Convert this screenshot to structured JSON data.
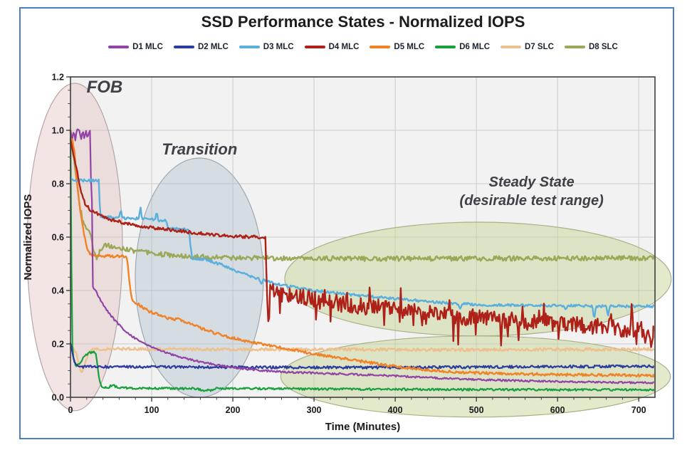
{
  "title": "SSD Performance States - Normalized IOPS",
  "colors": {
    "frame": "#4d7ebf",
    "plot_bg": "#f2f2f2",
    "grid": "#c9cccc",
    "axis_box": "#3f3f3f",
    "tick_text": "#1a1a1a",
    "annotation_text": "#3f4048",
    "title_text": "#1c1c1c"
  },
  "chart_data": {
    "type": "line",
    "title": "SSD Performance States - Normalized IOPS",
    "xlabel": "Time (Minutes)",
    "ylabel": "Normalized IOPS",
    "xlim": [
      0,
      720
    ],
    "ylim": [
      0,
      1.2
    ],
    "x_ticks": [
      0,
      100,
      200,
      300,
      400,
      500,
      600,
      700
    ],
    "y_ticks": [
      "0.0",
      "0.2",
      "0.4",
      "0.6",
      "0.8",
      "1.0",
      "1.2"
    ],
    "grid": true,
    "legend_position": "top",
    "draw_order": [
      "D7 SLC",
      "D8 SLC",
      "D6 MLC",
      "D2 MLC",
      "D5 MLC",
      "D1 MLC",
      "D3 MLC",
      "D4 MLC"
    ],
    "annotations": [
      {
        "label": "FOB",
        "label_t": 42,
        "label_v": 1.141,
        "font": 24,
        "ellipse": {
          "t": 5.3,
          "v": 0.563,
          "rt": 58.8,
          "rv": 0.613
        },
        "fill": "rgba(224,186,183,0.38)",
        "stroke": "#b3a6a4"
      },
      {
        "label": "Transition",
        "label_t": 159,
        "label_v": 0.909,
        "font": 22,
        "ellipse": {
          "t": 158.7,
          "v": 0.448,
          "rt": 78.9,
          "rv": 0.448
        },
        "fill": "rgba(174,191,204,0.42)",
        "stroke": "#9fa9b0"
      },
      {
        "label": "Steady State",
        "label2": "(desirable test range)",
        "label_t": 568,
        "label_v": 0.789,
        "label_v2": 0.72,
        "font": 20,
        "ellipse": {
          "t": 502,
          "v": 0.443,
          "rt": 238,
          "rv": 0.213
        },
        "fill": "rgba(199,211,151,0.5)",
        "stroke": "#a9b187"
      },
      {
        "label": "",
        "ellipse": {
          "t": 499,
          "v": 0.078,
          "rt": 240,
          "rv": 0.152
        },
        "fill": "rgba(199,211,151,0.5)",
        "stroke": "#a9b187"
      }
    ],
    "series": [
      {
        "name": "D1 MLC",
        "color": "#9144a6",
        "width": 2.2,
        "seed": 1,
        "noise": [
          [
            0,
            0.006
          ],
          [
            30,
            0.0035
          ]
        ],
        "points": [
          [
            0,
            1.0
          ],
          [
            2,
            0.965
          ],
          [
            4,
            1.0
          ],
          [
            6,
            0.965
          ],
          [
            8,
            1.0
          ],
          [
            11,
            1.0
          ],
          [
            13,
            0.965
          ],
          [
            15,
            1.0
          ],
          [
            17,
            0.968
          ],
          [
            19,
            1.0
          ],
          [
            21,
            0.968
          ],
          [
            23,
            1.0
          ],
          [
            24.5,
            1.0
          ],
          [
            25.5,
            0.74
          ],
          [
            26.5,
            0.74
          ],
          [
            27.5,
            0.42
          ],
          [
            30,
            0.405
          ],
          [
            38,
            0.36
          ],
          [
            45,
            0.325
          ],
          [
            55,
            0.287
          ],
          [
            65,
            0.256
          ],
          [
            75,
            0.231
          ],
          [
            85,
            0.211
          ],
          [
            95,
            0.196
          ],
          [
            110,
            0.177
          ],
          [
            125,
            0.16
          ],
          [
            140,
            0.147
          ],
          [
            155,
            0.136
          ],
          [
            170,
            0.127
          ],
          [
            190,
            0.117
          ],
          [
            210,
            0.108
          ],
          [
            230,
            0.102
          ],
          [
            250,
            0.0975
          ],
          [
            270,
            0.094
          ],
          [
            300,
            0.091
          ],
          [
            330,
            0.088
          ],
          [
            360,
            0.0845
          ],
          [
            400,
            0.08
          ],
          [
            440,
            0.074
          ],
          [
            480,
            0.068
          ],
          [
            530,
            0.064
          ],
          [
            580,
            0.06
          ],
          [
            640,
            0.057
          ],
          [
            718,
            0.054
          ]
        ]
      },
      {
        "name": "D2 MLC",
        "color": "#2b3c9e",
        "width": 2.2,
        "seed": 2,
        "noise": [
          [
            0,
            0.005
          ]
        ],
        "points": [
          [
            0,
            0.2
          ],
          [
            2,
            0.17
          ],
          [
            4,
            0.14
          ],
          [
            7,
            0.122
          ],
          [
            10,
            0.115
          ],
          [
            60,
            0.114
          ],
          [
            200,
            0.113
          ],
          [
            300,
            0.112
          ],
          [
            400,
            0.112
          ],
          [
            500,
            0.113
          ],
          [
            600,
            0.115
          ],
          [
            718,
            0.116
          ]
        ]
      },
      {
        "name": "D3 MLC",
        "color": "#5aafdc",
        "width": 2.4,
        "seed": 3,
        "noise": [
          [
            0,
            0.005
          ]
        ],
        "spikes": [
          [
            235,
            -0.02
          ],
          [
            480,
            -0.018
          ],
          [
            610,
            -0.02
          ],
          [
            645,
            -0.05
          ],
          [
            662,
            -0.038
          ]
        ],
        "points": [
          [
            0,
            0.82
          ],
          [
            3,
            0.812
          ],
          [
            35,
            0.812
          ],
          [
            36.5,
            0.68
          ],
          [
            38,
            0.675
          ],
          [
            60,
            0.672
          ],
          [
            62,
            0.702
          ],
          [
            64,
            0.671
          ],
          [
            84,
            0.669
          ],
          [
            86,
            0.716
          ],
          [
            88,
            0.668
          ],
          [
            104,
            0.666
          ],
          [
            106,
            0.698
          ],
          [
            108,
            0.664
          ],
          [
            118,
            0.661
          ],
          [
            120,
            0.633
          ],
          [
            146,
            0.629
          ],
          [
            148,
            0.56
          ],
          [
            150,
            0.522
          ],
          [
            166,
            0.516
          ],
          [
            180,
            0.503
          ],
          [
            200,
            0.478
          ],
          [
            220,
            0.455
          ],
          [
            240,
            0.436
          ],
          [
            260,
            0.42
          ],
          [
            280,
            0.41
          ],
          [
            300,
            0.4
          ],
          [
            330,
            0.39
          ],
          [
            360,
            0.38
          ],
          [
            390,
            0.372
          ],
          [
            420,
            0.364
          ],
          [
            450,
            0.356
          ],
          [
            480,
            0.35
          ],
          [
            520,
            0.346
          ],
          [
            560,
            0.344
          ],
          [
            600,
            0.343
          ],
          [
            650,
            0.342
          ],
          [
            718,
            0.341
          ]
        ]
      },
      {
        "name": "D4 MLC",
        "color": "#ae2118",
        "width": 2.4,
        "seed": 4,
        "noise": [
          [
            0,
            0.006
          ],
          [
            246,
            0.032
          ]
        ],
        "spiky_from": 250,
        "points": [
          [
            0,
            0.96
          ],
          [
            6,
            0.88
          ],
          [
            12,
            0.78
          ],
          [
            18,
            0.725
          ],
          [
            25,
            0.7
          ],
          [
            35,
            0.685
          ],
          [
            50,
            0.665
          ],
          [
            70,
            0.65
          ],
          [
            90,
            0.64
          ],
          [
            110,
            0.632
          ],
          [
            130,
            0.625
          ],
          [
            150,
            0.617
          ],
          [
            170,
            0.61
          ],
          [
            190,
            0.605
          ],
          [
            210,
            0.602
          ],
          [
            230,
            0.6
          ],
          [
            240,
            0.598
          ],
          [
            241.5,
            0.45
          ],
          [
            243,
            0.3
          ],
          [
            244.5,
            0.27
          ],
          [
            246,
            0.4
          ],
          [
            250,
            0.392
          ],
          [
            280,
            0.375
          ],
          [
            310,
            0.36
          ],
          [
            340,
            0.348
          ],
          [
            370,
            0.338
          ],
          [
            400,
            0.328
          ],
          [
            430,
            0.318
          ],
          [
            460,
            0.308
          ],
          [
            490,
            0.3
          ],
          [
            520,
            0.292
          ],
          [
            550,
            0.285
          ],
          [
            580,
            0.278
          ],
          [
            610,
            0.272
          ],
          [
            640,
            0.266
          ],
          [
            670,
            0.26
          ],
          [
            700,
            0.252
          ],
          [
            718,
            0.247
          ]
        ]
      },
      {
        "name": "D5 MLC",
        "color": "#f08228",
        "width": 2.4,
        "seed": 5,
        "noise": [
          [
            0,
            0.005
          ]
        ],
        "points": [
          [
            0,
            1.0
          ],
          [
            5,
            0.92
          ],
          [
            8,
            0.8
          ],
          [
            12,
            0.7
          ],
          [
            16,
            0.62
          ],
          [
            20,
            0.565
          ],
          [
            24,
            0.535
          ],
          [
            28,
            0.53
          ],
          [
            66,
            0.528
          ],
          [
            70,
            0.52
          ],
          [
            72,
            0.45
          ],
          [
            75,
            0.38
          ],
          [
            78,
            0.355
          ],
          [
            85,
            0.345
          ],
          [
            95,
            0.325
          ],
          [
            105,
            0.312
          ],
          [
            115,
            0.302
          ],
          [
            125,
            0.292
          ],
          [
            132,
            0.294
          ],
          [
            140,
            0.285
          ],
          [
            150,
            0.272
          ],
          [
            160,
            0.26
          ],
          [
            170,
            0.249
          ],
          [
            180,
            0.239
          ],
          [
            190,
            0.23
          ],
          [
            200,
            0.222
          ],
          [
            212,
            0.213
          ],
          [
            225,
            0.205
          ],
          [
            240,
            0.196
          ],
          [
            255,
            0.188
          ],
          [
            270,
            0.18
          ],
          [
            285,
            0.172
          ],
          [
            300,
            0.163
          ],
          [
            315,
            0.155
          ],
          [
            330,
            0.148
          ],
          [
            345,
            0.141
          ],
          [
            360,
            0.134
          ],
          [
            375,
            0.127
          ],
          [
            390,
            0.12
          ],
          [
            405,
            0.114
          ],
          [
            420,
            0.108
          ],
          [
            435,
            0.104
          ],
          [
            450,
            0.1
          ],
          [
            465,
            0.097
          ],
          [
            485,
            0.093
          ],
          [
            510,
            0.09
          ],
          [
            560,
            0.087
          ],
          [
            620,
            0.084
          ],
          [
            718,
            0.082
          ]
        ]
      },
      {
        "name": "D6 MLC",
        "color": "#18a03c",
        "width": 2.2,
        "seed": 6,
        "noise": [
          [
            0,
            0.004
          ]
        ],
        "points": [
          [
            0,
            1.0
          ],
          [
            1,
            0.55
          ],
          [
            2,
            0.22
          ],
          [
            3,
            0.155
          ],
          [
            5,
            0.132
          ],
          [
            7,
            0.118
          ],
          [
            10,
            0.124
          ],
          [
            14,
            0.14
          ],
          [
            18,
            0.155
          ],
          [
            22,
            0.164
          ],
          [
            27,
            0.17
          ],
          [
            31,
            0.17
          ],
          [
            33,
            0.125
          ],
          [
            35,
            0.075
          ],
          [
            37,
            0.048
          ],
          [
            40,
            0.038
          ],
          [
            46,
            0.037
          ],
          [
            52,
            0.046
          ],
          [
            56,
            0.04
          ],
          [
            62,
            0.036
          ],
          [
            80,
            0.034
          ],
          [
            120,
            0.033
          ],
          [
            155,
            0.033
          ],
          [
            162,
            0.027
          ],
          [
            172,
            0.026
          ],
          [
            178,
            0.033
          ],
          [
            230,
            0.033
          ],
          [
            300,
            0.031
          ],
          [
            400,
            0.03
          ],
          [
            500,
            0.029
          ],
          [
            600,
            0.028
          ],
          [
            718,
            0.028
          ]
        ]
      },
      {
        "name": "D7 SLC",
        "color": "#edc18d",
        "width": 2.4,
        "seed": 7,
        "noise": [
          [
            0,
            0.0055
          ]
        ],
        "points": [
          [
            0,
            0.19
          ],
          [
            4,
            0.186
          ],
          [
            8,
            0.158
          ],
          [
            11,
            0.118
          ],
          [
            13,
            0.094
          ],
          [
            15,
            0.097
          ],
          [
            18,
            0.126
          ],
          [
            21,
            0.158
          ],
          [
            24,
            0.175
          ],
          [
            28,
            0.181
          ],
          [
            60,
            0.181
          ],
          [
            150,
            0.18
          ],
          [
            300,
            0.179
          ],
          [
            450,
            0.178
          ],
          [
            600,
            0.179
          ],
          [
            718,
            0.18
          ]
        ]
      },
      {
        "name": "D8 SLC",
        "color": "#9aa857",
        "width": 2.4,
        "seed": 8,
        "noise": [
          [
            0,
            0.01
          ],
          [
            40,
            0.009
          ]
        ],
        "points": [
          [
            0,
            1.0
          ],
          [
            3,
            0.93
          ],
          [
            6,
            0.84
          ],
          [
            9,
            0.77
          ],
          [
            12,
            0.71
          ],
          [
            15,
            0.665
          ],
          [
            18,
            0.64
          ],
          [
            22,
            0.625
          ],
          [
            25,
            0.6
          ],
          [
            27,
            0.57
          ],
          [
            29,
            0.545
          ],
          [
            31,
            0.525
          ],
          [
            33,
            0.52
          ],
          [
            36,
            0.545
          ],
          [
            40,
            0.565
          ],
          [
            44,
            0.572
          ],
          [
            50,
            0.565
          ],
          [
            56,
            0.56
          ],
          [
            64,
            0.557
          ],
          [
            75,
            0.55
          ],
          [
            90,
            0.543
          ],
          [
            110,
            0.536
          ],
          [
            130,
            0.531
          ],
          [
            150,
            0.528
          ],
          [
            180,
            0.524
          ],
          [
            240,
            0.521
          ],
          [
            350,
            0.519
          ],
          [
            500,
            0.52
          ],
          [
            650,
            0.521
          ],
          [
            718,
            0.522
          ]
        ]
      }
    ]
  }
}
